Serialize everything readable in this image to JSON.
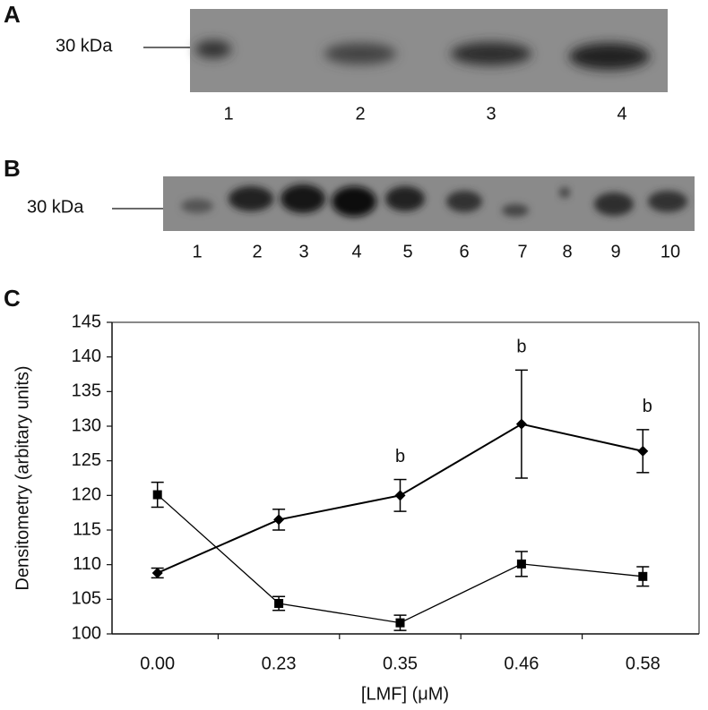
{
  "panel_a": {
    "label": "A",
    "marker": "30 kDa",
    "lanes": [
      "1",
      "2",
      "3",
      "4"
    ]
  },
  "panel_b": {
    "label": "B",
    "marker": "30 kDa",
    "lanes": [
      "1",
      "2",
      "3",
      "4",
      "5",
      "6",
      "7",
      "8",
      "9",
      "10"
    ]
  },
  "chart_data": {
    "type": "line",
    "panel_label": "C",
    "xlabel": "[LMF] (μM)",
    "ylabel": "Densitometry (arbitary units)",
    "categories": [
      "0.00",
      "0.23",
      "0.35",
      "0.46",
      "0.58"
    ],
    "ylim": [
      100,
      145
    ],
    "yticks": [
      100,
      105,
      110,
      115,
      120,
      125,
      130,
      135,
      140,
      145
    ],
    "series": [
      {
        "color": "#000000",
        "marker": "diamond",
        "values": [
          108.8,
          116.5,
          120.0,
          130.3,
          126.4
        ],
        "errors": [
          0.7,
          1.5,
          2.3,
          7.8,
          3.1
        ],
        "point_labels": [
          null,
          null,
          "b",
          "b",
          "b"
        ]
      },
      {
        "color": "#000000",
        "marker": "square",
        "values": [
          120.1,
          104.4,
          101.6,
          110.1,
          108.3
        ],
        "errors": [
          1.8,
          1.0,
          1.1,
          1.8,
          1.4
        ],
        "point_labels": [
          null,
          null,
          null,
          null,
          null
        ]
      }
    ]
  }
}
